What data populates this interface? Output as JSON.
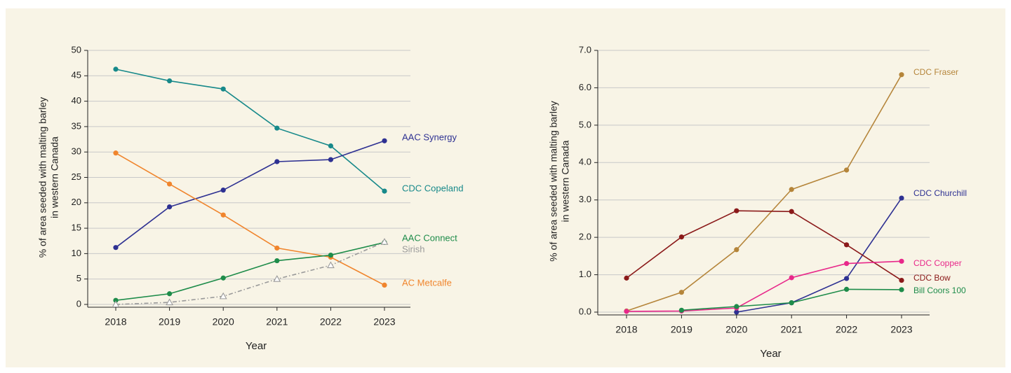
{
  "chart_data": [
    {
      "type": "line",
      "y_label": [
        "% of area seeded with malting barley",
        "in western Canada"
      ],
      "x_label": "Year",
      "categories": [
        "2018",
        "2019",
        "2020",
        "2021",
        "2022",
        "2023"
      ],
      "ylim": [
        0,
        50
      ],
      "yticks": [
        0,
        5,
        10,
        15,
        20,
        25,
        30,
        35,
        40,
        45,
        50
      ],
      "grid": true,
      "series": [
        {
          "name": "CDC Copeland",
          "color": "#17898a",
          "values": [
            46.3,
            44.0,
            42.4,
            34.7,
            31.2,
            22.3
          ]
        },
        {
          "name": "AAC Synergy",
          "color": "#2e3192",
          "values": [
            11.2,
            19.2,
            22.5,
            28.1,
            28.5,
            32.2
          ]
        },
        {
          "name": "AC Metcalfe",
          "color": "#f0852d",
          "values": [
            29.8,
            23.7,
            17.6,
            11.1,
            9.3,
            3.8
          ]
        },
        {
          "name": "AAC Connect",
          "color": "#1e8c4a",
          "values": [
            0.8,
            2.1,
            5.2,
            8.6,
            9.7,
            12.2
          ]
        },
        {
          "name": "Sirish",
          "color": "#9a9a9a",
          "line_style": "dashdot",
          "marker": "open-triangle",
          "values": [
            0.0,
            0.4,
            1.6,
            5.0,
            7.7,
            12.3
          ]
        }
      ]
    },
    {
      "type": "line",
      "y_label": [
        "% of area seeded with malting barley",
        "in western Canada"
      ],
      "x_label": "Year",
      "categories": [
        "2018",
        "2019",
        "2020",
        "2021",
        "2022",
        "2023"
      ],
      "ylim": [
        0,
        7
      ],
      "yticks": [
        {
          "value": 0,
          "label": "0.0"
        },
        {
          "value": 1,
          "label": "1.0"
        },
        {
          "value": 2,
          "label": "2.0"
        },
        {
          "value": 3,
          "label": "3.0"
        },
        {
          "value": 4,
          "label": "4.0"
        },
        {
          "value": 5,
          "label": "5.0"
        },
        {
          "value": 6,
          "label": "6.0"
        },
        {
          "value": 7,
          "label": "7.0"
        }
      ],
      "grid": true,
      "series": [
        {
          "name": "CDC Fraser",
          "color": "#b5853a",
          "values": [
            0.03,
            0.53,
            1.67,
            3.28,
            3.8,
            6.35
          ]
        },
        {
          "name": "CDC Churchill",
          "color": "#2e3192",
          "values": [
            null,
            null,
            0.0,
            0.25,
            0.9,
            3.05
          ]
        },
        {
          "name": "CDC Bow",
          "color": "#8b1a1a",
          "values": [
            0.91,
            2.01,
            2.71,
            2.69,
            1.8,
            0.85
          ]
        },
        {
          "name": "CDC Copper",
          "color": "#e8288a",
          "values": [
            0.02,
            0.03,
            0.11,
            0.92,
            1.3,
            1.36
          ]
        },
        {
          "name": "Bill Coors 100",
          "color": "#1e8c4a",
          "values": [
            null,
            0.05,
            0.15,
            0.25,
            0.61,
            0.6
          ]
        }
      ]
    }
  ]
}
